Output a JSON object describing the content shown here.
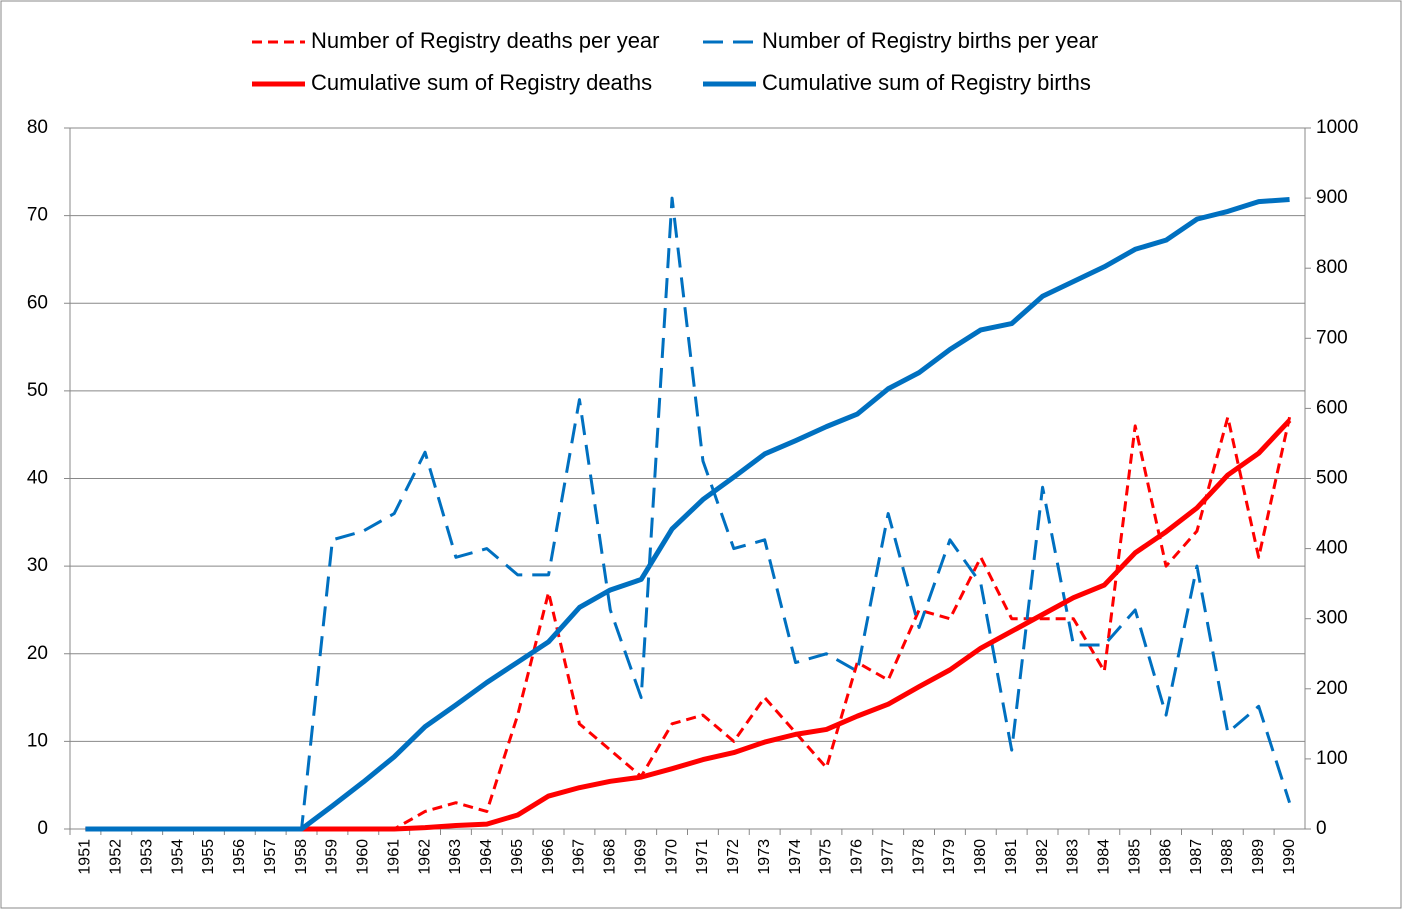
{
  "chart_data": {
    "type": "line",
    "categories": [
      "1951",
      "1952",
      "1953",
      "1954",
      "1955",
      "1956",
      "1957",
      "1958",
      "1959",
      "1960",
      "1961",
      "1962",
      "1963",
      "1964",
      "1965",
      "1966",
      "1967",
      "1968",
      "1969",
      "1970",
      "1971",
      "1972",
      "1973",
      "1974",
      "1975",
      "1976",
      "1977",
      "1978",
      "1979",
      "1980",
      "1981",
      "1982",
      "1983",
      "1984",
      "1985",
      "1986",
      "1987",
      "1988",
      "1989",
      "1990"
    ],
    "series": [
      {
        "name": "Number of Registry deaths per year",
        "color": "#ff0000",
        "style": "dashed",
        "axis": "y",
        "values": [
          0,
          0,
          0,
          0,
          0,
          0,
          0,
          0,
          0,
          0,
          0,
          2,
          3,
          2,
          13,
          27,
          12,
          9,
          6,
          12,
          13,
          10,
          15,
          11,
          7,
          19,
          17,
          25,
          24,
          31,
          24,
          24,
          24,
          18,
          46,
          30,
          34,
          47,
          31,
          47
        ]
      },
      {
        "name": "Number of Registry births per year",
        "color": "#0070c0",
        "style": "dashed",
        "axis": "y",
        "values": [
          0,
          0,
          0,
          0,
          0,
          0,
          0,
          0,
          33,
          34,
          36,
          43,
          31,
          32,
          29,
          29,
          49,
          25,
          15,
          72,
          42,
          32,
          33,
          19,
          20,
          18,
          36,
          23,
          33,
          28,
          9,
          39,
          21,
          21,
          25,
          13,
          30,
          11,
          14,
          3
        ]
      },
      {
        "name": "Cumulative sum of Registry deaths",
        "color": "#ff0000",
        "style": "solid",
        "axis": "y2",
        "values": [
          0,
          0,
          0,
          0,
          0,
          0,
          0,
          0,
          0,
          0,
          0,
          2,
          5,
          7,
          20,
          47,
          59,
          68,
          74,
          86,
          99,
          109,
          124,
          135,
          142,
          161,
          178,
          203,
          227,
          258,
          282,
          306,
          330,
          348,
          394,
          424,
          458,
          505,
          536,
          583
        ]
      },
      {
        "name": "Cumulative sum of Registry births",
        "color": "#0070c0",
        "style": "solid",
        "axis": "y2",
        "values": [
          0,
          0,
          0,
          0,
          0,
          0,
          0,
          0,
          33,
          67,
          103,
          146,
          177,
          209,
          238,
          267,
          316,
          341,
          356,
          428,
          470,
          502,
          535,
          554,
          574,
          592,
          628,
          651,
          684,
          712,
          721,
          760,
          781,
          802,
          827,
          840,
          870,
          881,
          895,
          898
        ]
      }
    ],
    "ylim": [
      0,
      80
    ],
    "yticks": [
      0,
      10,
      20,
      30,
      40,
      50,
      60,
      70,
      80
    ],
    "y2lim": [
      0,
      1000
    ],
    "y2ticks": [
      0,
      100,
      200,
      300,
      400,
      500,
      600,
      700,
      800,
      900,
      1000
    ],
    "grid": true
  }
}
